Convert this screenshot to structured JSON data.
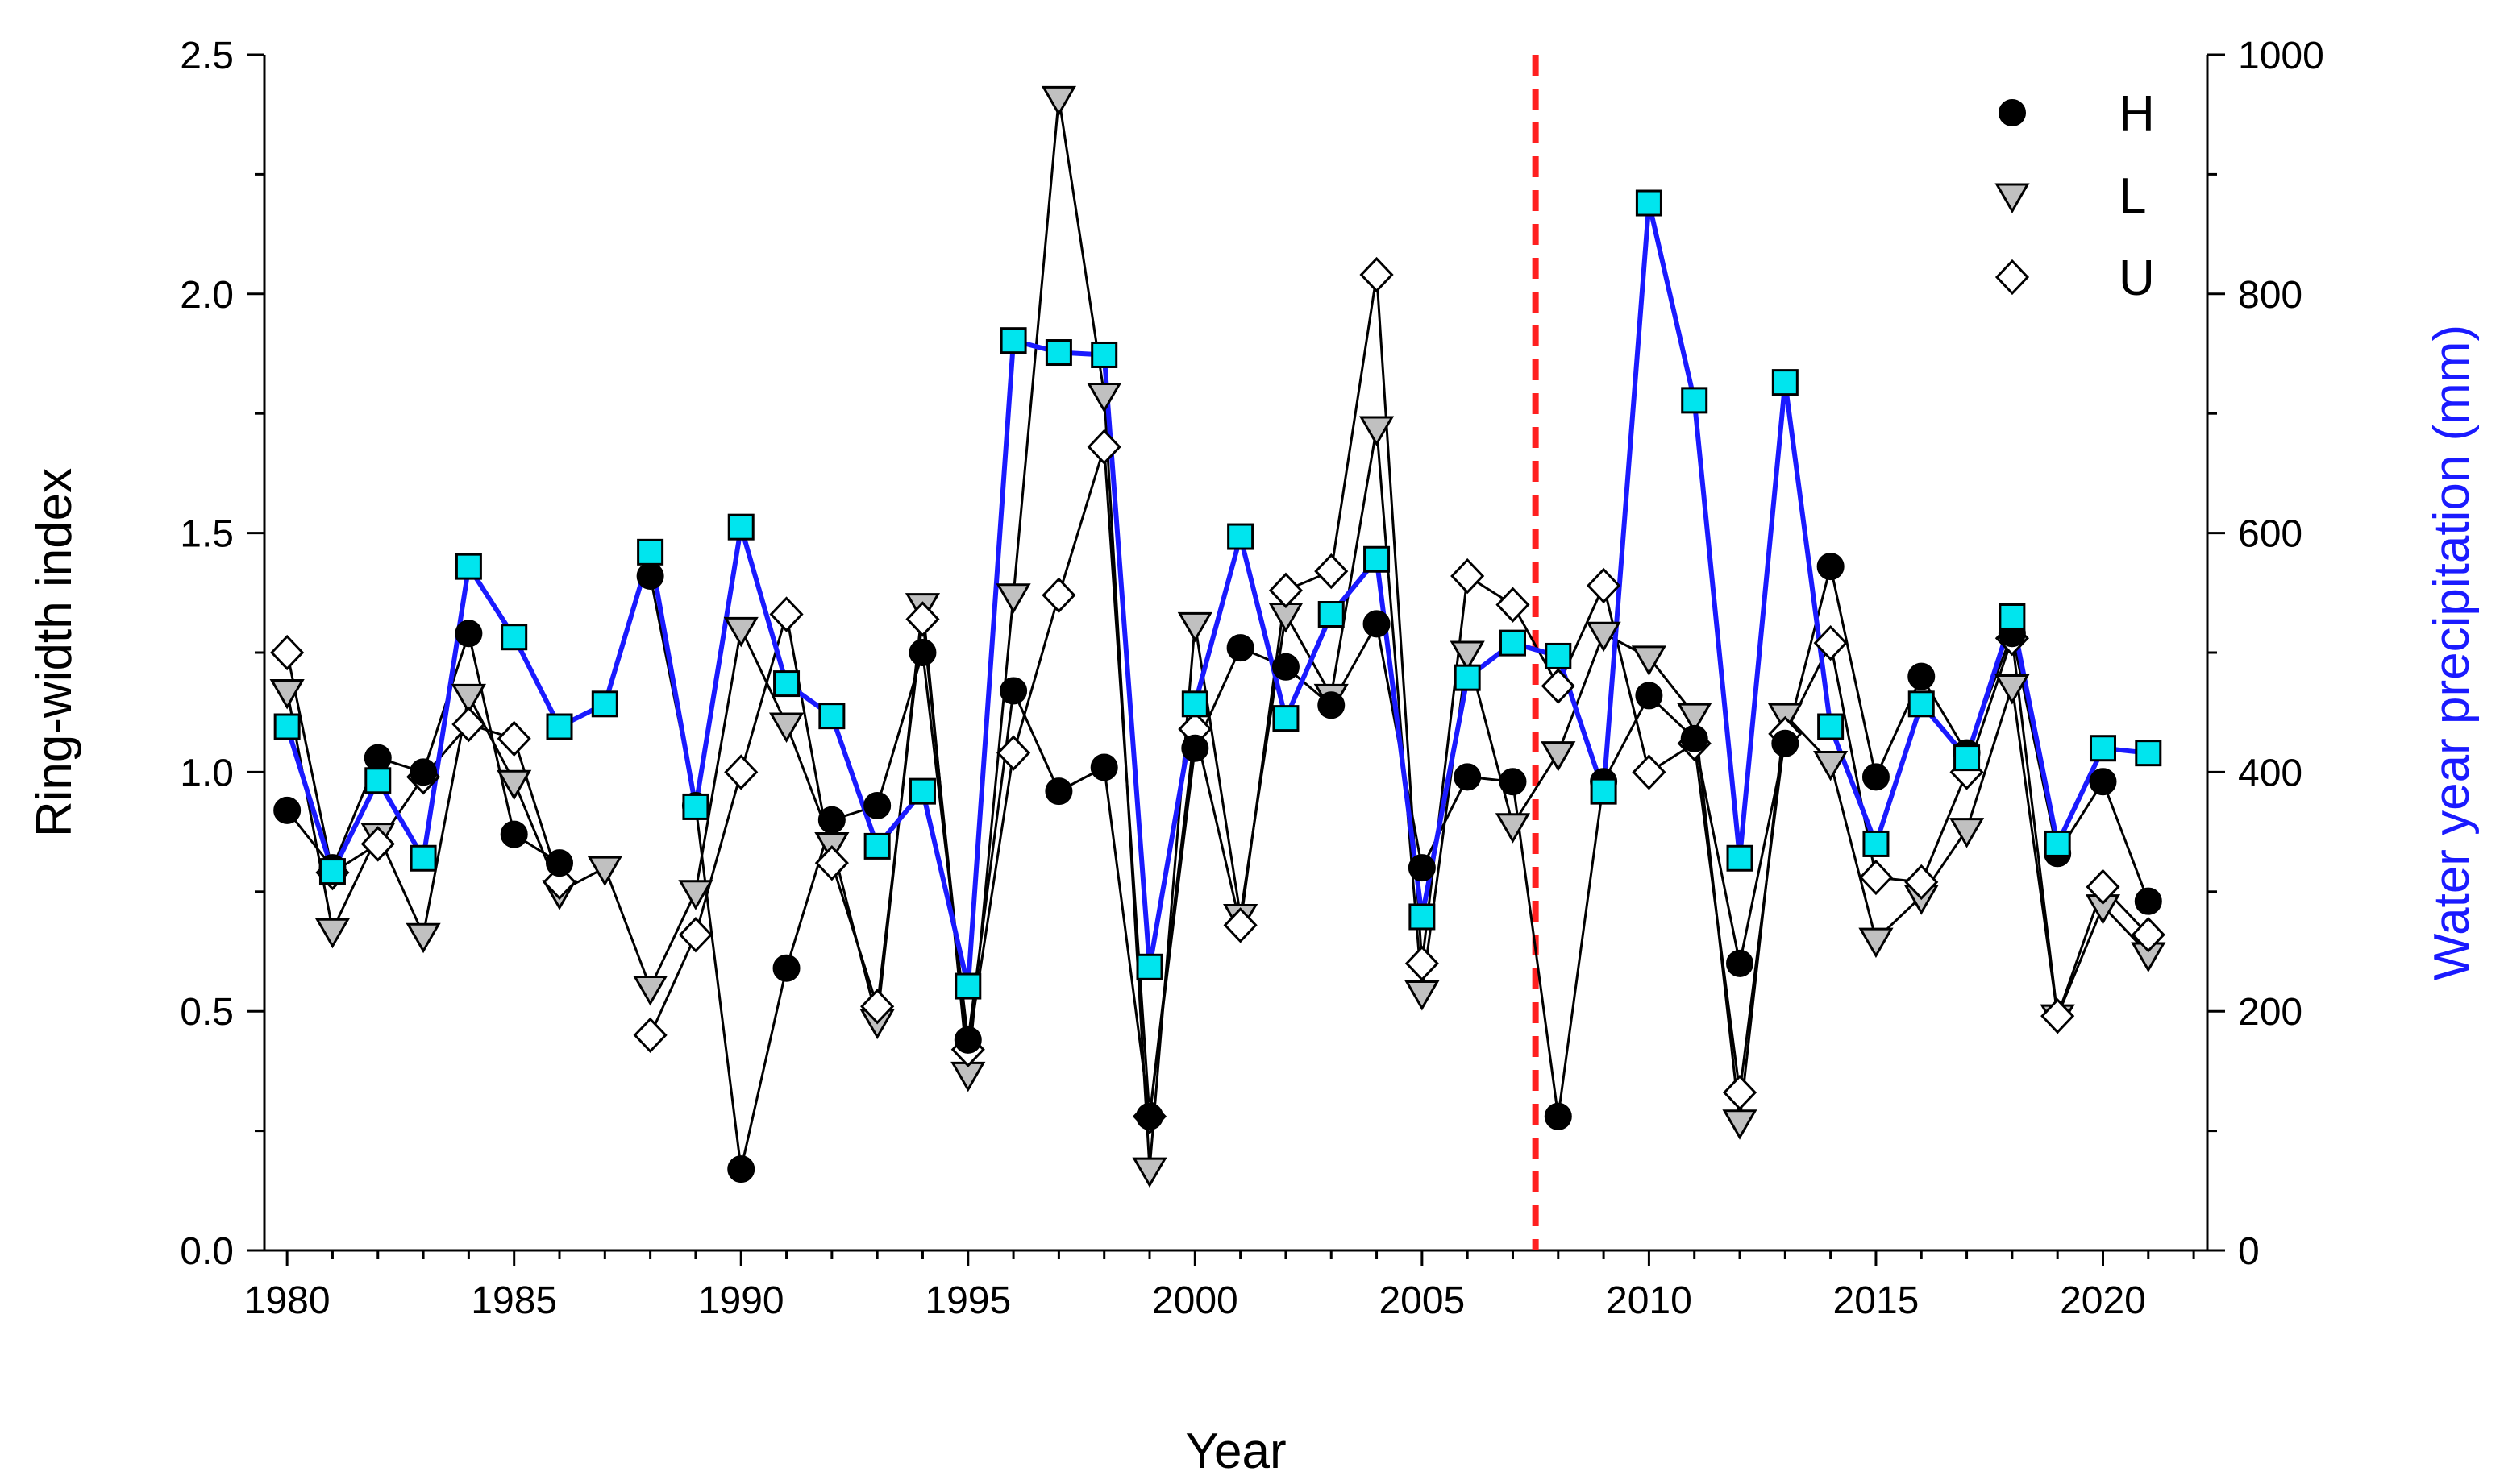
{
  "chart_data": {
    "type": "line",
    "xlabel": "Year",
    "ylabel_left": "Ring-width index",
    "ylabel_right": "Water year precipitation (mm)",
    "xlim": [
      1979.5,
      2022.3
    ],
    "ylim_left": [
      0,
      2.5
    ],
    "ylim_right": [
      0,
      1000
    ],
    "x_ticks": [
      1980,
      1985,
      1990,
      1995,
      2000,
      2005,
      2010,
      2015,
      2020
    ],
    "y_left_ticks": [
      "0.0",
      "0.5",
      "1.0",
      "1.5",
      "2.0",
      "2.5"
    ],
    "y_right_ticks": [
      "0",
      "200",
      "400",
      "600",
      "800",
      "1000"
    ],
    "vline_x": 2007.5,
    "years": [
      1980,
      1981,
      1982,
      1983,
      1984,
      1985,
      1986,
      1987,
      1988,
      1989,
      1990,
      1991,
      1992,
      1993,
      1994,
      1995,
      1996,
      1997,
      1998,
      1999,
      2000,
      2001,
      2002,
      2003,
      2004,
      2005,
      2006,
      2007,
      2008,
      2009,
      2010,
      2011,
      2012,
      2013,
      2014,
      2015,
      2016,
      2017,
      2018,
      2019,
      2020,
      2021
    ],
    "series": [
      {
        "name": "H",
        "marker": "circle",
        "axis": "left",
        "values": [
          0.92,
          0.8,
          1.03,
          1.0,
          1.29,
          0.87,
          0.81,
          null,
          1.41,
          0.93,
          0.17,
          0.59,
          0.9,
          0.93,
          1.25,
          0.44,
          1.17,
          0.96,
          1.01,
          0.28,
          1.05,
          1.26,
          1.22,
          1.14,
          1.31,
          0.8,
          0.99,
          0.98,
          0.28,
          0.98,
          1.16,
          1.07,
          0.6,
          1.06,
          1.43,
          0.99,
          1.2,
          1.04,
          1.29,
          0.83,
          0.98,
          0.73
        ]
      },
      {
        "name": "L",
        "marker": "triangle-down",
        "axis": "left",
        "values": [
          1.17,
          0.67,
          0.87,
          0.66,
          1.16,
          0.98,
          0.75,
          0.8,
          0.55,
          0.75,
          1.3,
          1.1,
          0.85,
          0.48,
          1.35,
          0.37,
          1.37,
          2.41,
          1.79,
          0.17,
          1.31,
          0.7,
          1.33,
          1.16,
          1.72,
          0.54,
          1.25,
          0.89,
          1.04,
          1.29,
          1.24,
          1.12,
          0.27,
          1.12,
          1.02,
          0.65,
          0.74,
          0.88,
          1.18,
          0.49,
          0.72,
          0.62
        ]
      },
      {
        "name": "U",
        "marker": "diamond",
        "axis": "left",
        "values": [
          1.25,
          0.79,
          0.85,
          0.99,
          1.1,
          1.07,
          0.77,
          null,
          0.45,
          0.66,
          1.0,
          1.33,
          0.81,
          0.51,
          1.32,
          0.42,
          1.04,
          1.37,
          1.68,
          0.28,
          1.09,
          0.68,
          1.38,
          1.42,
          2.04,
          0.6,
          1.41,
          1.35,
          1.18,
          1.39,
          1.0,
          1.06,
          0.33,
          1.08,
          1.27,
          0.78,
          0.77,
          1.0,
          1.28,
          0.49,
          0.76,
          0.66
        ]
      },
      {
        "name": "Water year precipitation",
        "marker": "square",
        "axis": "right",
        "values": [
          438,
          317,
          393,
          328,
          572,
          513,
          438,
          457,
          584,
          371,
          605,
          474,
          447,
          338,
          384,
          221,
          761,
          751,
          749,
          237,
          457,
          597,
          445,
          532,
          578,
          279,
          479,
          508,
          497,
          384,
          876,
          711,
          328,
          726,
          438,
          340,
          457,
          412,
          530,
          340,
          420,
          416
        ]
      }
    ],
    "legend": [
      {
        "label": "H",
        "marker": "circle"
      },
      {
        "label": "L",
        "marker": "triangle-down"
      },
      {
        "label": "U",
        "marker": "diamond"
      }
    ],
    "colors": {
      "precip_line": "#1a1aff",
      "precip_fill": "#00e5ee",
      "vline": "#ff2020",
      "triangle_fill": "#c0c0c0",
      "ring_line": "#000000"
    }
  }
}
